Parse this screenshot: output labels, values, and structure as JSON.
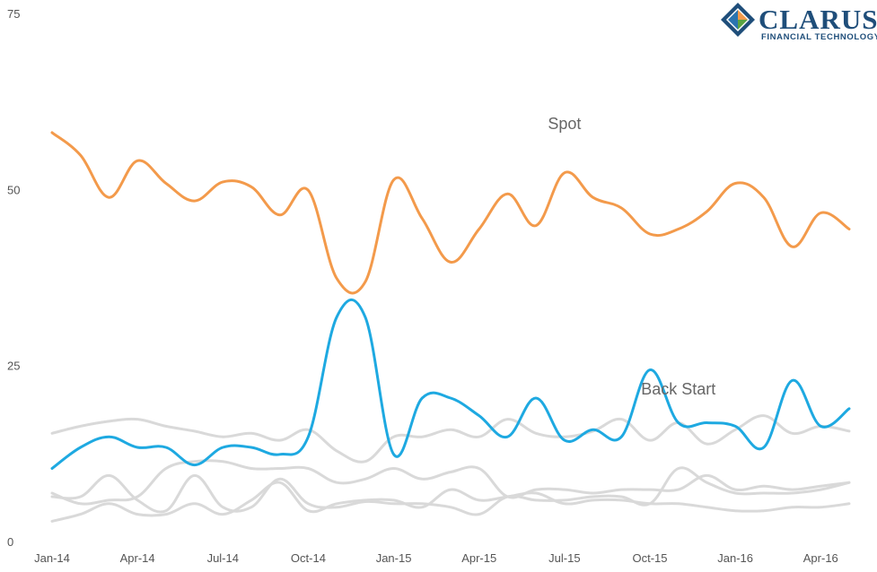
{
  "logo": {
    "word": "CLARUS",
    "tagline": "FINANCIAL TECHNOLOGY"
  },
  "colors": {
    "spot": "#f39a4b",
    "back_start": "#1ea9e1",
    "other": "#d9d9d9",
    "logo_blue": "#1f4e7a",
    "logo_orange": "#f39a4b",
    "logo_green": "#5aa342"
  },
  "chart_data": {
    "type": "line",
    "x_tick_labels": [
      "Jan-14",
      "Apr-14",
      "Jul-14",
      "Oct-14",
      "Jan-15",
      "Apr-15",
      "Jul-15",
      "Oct-15",
      "Jan-16",
      "Apr-16"
    ],
    "ylim": [
      0,
      75
    ],
    "y_ticks": [
      0,
      25,
      50,
      75
    ],
    "grid": false,
    "annotations": [
      {
        "text": "Spot",
        "series": "Spot"
      },
      {
        "text": "Back Start",
        "series": "Back Start"
      }
    ],
    "series": [
      {
        "name": "Spot",
        "color": "#f39a4b",
        "width": 3,
        "values": [
          58.2,
          55.0,
          49.0,
          54.2,
          51.0,
          48.5,
          51.2,
          50.5,
          46.5,
          50.0,
          37.5,
          37.0,
          51.5,
          46.0,
          39.8,
          44.5,
          49.5,
          45.0,
          52.5,
          49.0,
          47.5,
          43.8,
          44.5,
          47.0,
          51.0,
          49.0,
          42.0,
          46.8,
          44.5
        ]
      },
      {
        "name": "Back Start",
        "color": "#1ea9e1",
        "width": 3,
        "values": [
          10.5,
          13.5,
          15.0,
          13.5,
          13.5,
          11.0,
          13.5,
          13.5,
          12.5,
          15.0,
          32.0,
          32.0,
          12.5,
          20.5,
          20.5,
          18.0,
          15.0,
          20.5,
          14.5,
          16.0,
          15.0,
          24.5,
          17.0,
          17.0,
          16.5,
          13.5,
          23.0,
          16.5,
          19.0
        ]
      },
      {
        "color": "#d9d9d9",
        "width": 3,
        "values": [
          15.5,
          16.5,
          17.2,
          17.5,
          16.5,
          15.8,
          15.0,
          15.5,
          14.5,
          16.0,
          13.0,
          11.5,
          15.0,
          15.0,
          16.0,
          15.0,
          17.5,
          15.5,
          15.0,
          15.8,
          17.5,
          14.5,
          17.0,
          14.0,
          16.0,
          18.0,
          15.5,
          16.5,
          15.8
        ]
      },
      {
        "color": "#d9d9d9",
        "width": 3,
        "values": [
          6.5,
          6.5,
          9.5,
          6.0,
          4.5,
          9.5,
          5.0,
          5.0,
          9.0,
          5.5,
          5.0,
          5.8,
          5.5,
          5.5,
          5.0,
          4.0,
          6.5,
          6.0,
          6.0,
          6.5,
          6.5,
          5.5,
          10.5,
          8.5,
          7.0,
          7.0,
          7.0,
          7.5,
          8.5
        ]
      },
      {
        "color": "#d9d9d9",
        "width": 3,
        "values": [
          7.0,
          5.5,
          6.0,
          6.5,
          10.5,
          11.5,
          11.5,
          10.5,
          10.5,
          10.5,
          8.5,
          9.0,
          10.5,
          9.0,
          10.0,
          10.5,
          6.5,
          7.5,
          7.5,
          7.0,
          7.5,
          7.5,
          7.5,
          9.5,
          7.5,
          8.0,
          7.5,
          8.0,
          8.5
        ]
      },
      {
        "color": "#d9d9d9",
        "width": 3,
        "values": [
          3.0,
          4.0,
          5.5,
          4.0,
          4.0,
          5.5,
          4.0,
          6.0,
          8.5,
          4.5,
          5.5,
          6.0,
          6.0,
          5.0,
          7.5,
          6.0,
          6.5,
          7.0,
          5.5,
          6.0,
          6.0,
          5.5,
          5.5,
          5.0,
          4.5,
          4.5,
          5.0,
          5.0,
          5.5
        ]
      }
    ]
  }
}
